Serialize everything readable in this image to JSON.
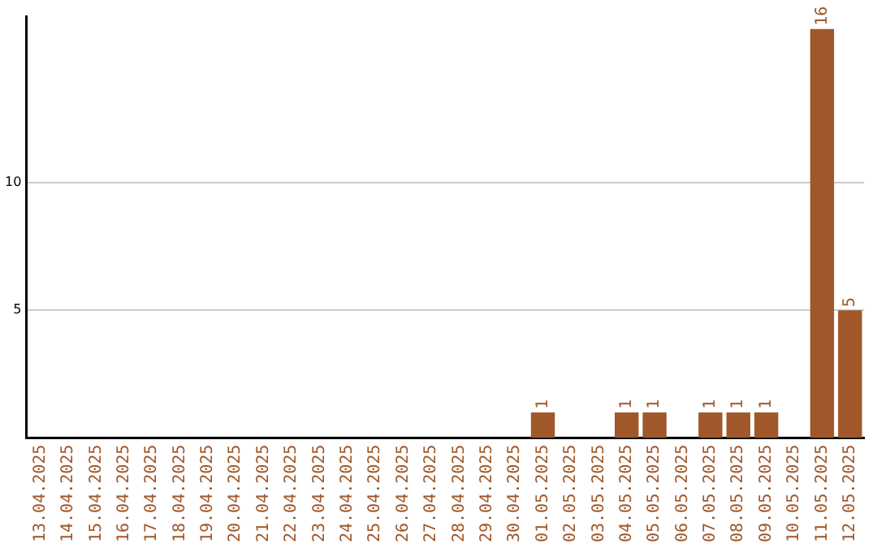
{
  "chart_data": {
    "type": "bar",
    "categories": [
      "13.04.2025",
      "14.04.2025",
      "15.04.2025",
      "16.04.2025",
      "17.04.2025",
      "18.04.2025",
      "19.04.2025",
      "20.04.2025",
      "21.04.2025",
      "22.04.2025",
      "23.04.2025",
      "24.04.2025",
      "25.04.2025",
      "26.04.2025",
      "27.04.2025",
      "28.04.2025",
      "29.04.2025",
      "30.04.2025",
      "01.05.2025",
      "02.05.2025",
      "03.05.2025",
      "04.05.2025",
      "05.05.2025",
      "06.05.2025",
      "07.05.2025",
      "08.05.2025",
      "09.05.2025",
      "10.05.2025",
      "11.05.2025",
      "12.05.2025"
    ],
    "values": [
      0,
      0,
      0,
      0,
      0,
      0,
      0,
      0,
      0,
      0,
      0,
      0,
      0,
      0,
      0,
      0,
      0,
      0,
      1,
      0,
      0,
      1,
      1,
      0,
      1,
      1,
      1,
      0,
      16,
      5
    ],
    "value_labels": [
      null,
      null,
      null,
      null,
      null,
      null,
      null,
      null,
      null,
      null,
      null,
      null,
      null,
      null,
      null,
      null,
      null,
      null,
      "1",
      null,
      null,
      "1",
      "1",
      null,
      "1",
      "1",
      "1",
      null,
      "16",
      "5"
    ],
    "color": "#a0572a",
    "ylim": [
      0,
      16.5
    ],
    "yticks": [
      5,
      10
    ],
    "grid": "y",
    "legend": false
  }
}
